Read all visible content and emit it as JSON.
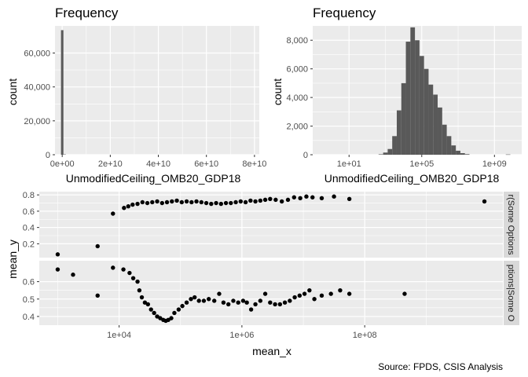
{
  "chart_data": [
    {
      "type": "bar",
      "title": "Frequency",
      "xlabel": "UnmodifiedCeiling_OMB20_GDP18",
      "ylabel": "count",
      "x_scale": "linear",
      "xlim": [
        -3000000000.0,
        82000000000.0
      ],
      "ylim": [
        0,
        76000
      ],
      "x_ticks": [
        0,
        20000000000.0,
        40000000000.0,
        60000000000.0,
        80000000000.0
      ],
      "x_tick_labels": [
        "0e+00",
        "2e+10",
        "4e+10",
        "6e+10",
        "8e+10"
      ],
      "y_ticks": [
        0,
        20000,
        40000,
        60000
      ],
      "y_tick_labels": [
        "0",
        "20,000",
        "40,000",
        "60,000"
      ],
      "bin_width": 1000000000.0,
      "bins": [
        {
          "x": 0,
          "count": 73500
        },
        {
          "x": 1000000000.0,
          "count": 200
        }
      ]
    },
    {
      "type": "bar",
      "title": "Frequency",
      "xlabel": "UnmodifiedCeiling_OMB20_GDP18",
      "ylabel": "count",
      "x_scale": "log10",
      "xlim_log10": [
        -1.0,
        10.5
      ],
      "ylim": [
        0,
        9000
      ],
      "x_ticks_log10": [
        1,
        5,
        9
      ],
      "x_tick_labels": [
        "1e+01",
        "1e+05",
        "1e+09"
      ],
      "y_ticks": [
        0,
        2000,
        4000,
        6000,
        8000
      ],
      "y_tick_labels": [
        "0",
        "2,000",
        "4,000",
        "6,000",
        "8,000"
      ],
      "bin_width_log10": 0.25,
      "bins_log10": [
        {
          "x": 2.75,
          "count": 30
        },
        {
          "x": 3.0,
          "count": 150
        },
        {
          "x": 3.25,
          "count": 400
        },
        {
          "x": 3.5,
          "count": 1300
        },
        {
          "x": 3.75,
          "count": 3100
        },
        {
          "x": 4.0,
          "count": 5000
        },
        {
          "x": 4.25,
          "count": 7900
        },
        {
          "x": 4.5,
          "count": 8900
        },
        {
          "x": 4.75,
          "count": 8000
        },
        {
          "x": 5.0,
          "count": 6900
        },
        {
          "x": 5.25,
          "count": 6000
        },
        {
          "x": 5.5,
          "count": 4900
        },
        {
          "x": 5.75,
          "count": 4200
        },
        {
          "x": 6.0,
          "count": 3300
        },
        {
          "x": 6.25,
          "count": 2100
        },
        {
          "x": 6.5,
          "count": 1300
        },
        {
          "x": 6.75,
          "count": 650
        },
        {
          "x": 7.0,
          "count": 280
        },
        {
          "x": 7.25,
          "count": 110
        },
        {
          "x": 7.5,
          "count": 40
        },
        {
          "x": 9.75,
          "count": 20
        }
      ]
    },
    {
      "type": "scatter",
      "xlabel": "mean_x",
      "ylabel": "mean_y",
      "x_scale": "log10",
      "xlim_log10": [
        2.7,
        10.25
      ],
      "x_ticks_log10": [
        4,
        6,
        8
      ],
      "x_tick_labels": [
        "1e+04",
        "1e+06",
        "1e+08"
      ],
      "facets": [
        {
          "strip": "r(Some Options",
          "ylim": [
            0.03,
            0.84
          ],
          "y_ticks": [
            0.2,
            0.4,
            0.6,
            0.8
          ],
          "y_tick_labels": [
            "0.2",
            "0.4",
            "0.6",
            "0.8"
          ],
          "points": [
            {
              "x": 3.0,
              "y": 0.07
            },
            {
              "x": 3.65,
              "y": 0.17
            },
            {
              "x": 3.9,
              "y": 0.57
            },
            {
              "x": 4.08,
              "y": 0.64
            },
            {
              "x": 4.15,
              "y": 0.66
            },
            {
              "x": 4.22,
              "y": 0.68
            },
            {
              "x": 4.3,
              "y": 0.69
            },
            {
              "x": 4.38,
              "y": 0.71
            },
            {
              "x": 4.46,
              "y": 0.7
            },
            {
              "x": 4.54,
              "y": 0.71
            },
            {
              "x": 4.62,
              "y": 0.72
            },
            {
              "x": 4.7,
              "y": 0.7
            },
            {
              "x": 4.78,
              "y": 0.71
            },
            {
              "x": 4.86,
              "y": 0.72
            },
            {
              "x": 4.94,
              "y": 0.73
            },
            {
              "x": 5.02,
              "y": 0.71
            },
            {
              "x": 5.1,
              "y": 0.72
            },
            {
              "x": 5.18,
              "y": 0.71
            },
            {
              "x": 5.26,
              "y": 0.72
            },
            {
              "x": 5.34,
              "y": 0.71
            },
            {
              "x": 5.42,
              "y": 0.7
            },
            {
              "x": 5.5,
              "y": 0.69
            },
            {
              "x": 5.58,
              "y": 0.7
            },
            {
              "x": 5.66,
              "y": 0.69
            },
            {
              "x": 5.74,
              "y": 0.7
            },
            {
              "x": 5.82,
              "y": 0.7
            },
            {
              "x": 5.9,
              "y": 0.71
            },
            {
              "x": 5.98,
              "y": 0.72
            },
            {
              "x": 6.06,
              "y": 0.71
            },
            {
              "x": 6.14,
              "y": 0.73
            },
            {
              "x": 6.22,
              "y": 0.72
            },
            {
              "x": 6.3,
              "y": 0.73
            },
            {
              "x": 6.38,
              "y": 0.74
            },
            {
              "x": 6.46,
              "y": 0.75
            },
            {
              "x": 6.55,
              "y": 0.74
            },
            {
              "x": 6.65,
              "y": 0.72
            },
            {
              "x": 6.75,
              "y": 0.74
            },
            {
              "x": 6.85,
              "y": 0.77
            },
            {
              "x": 6.95,
              "y": 0.76
            },
            {
              "x": 7.05,
              "y": 0.78
            },
            {
              "x": 7.15,
              "y": 0.77
            },
            {
              "x": 7.3,
              "y": 0.76
            },
            {
              "x": 7.5,
              "y": 0.78
            },
            {
              "x": 7.75,
              "y": 0.75
            },
            {
              "x": 9.95,
              "y": 0.72
            }
          ]
        },
        {
          "strip": "ptions|Some O",
          "ylim": [
            0.35,
            0.72
          ],
          "y_ticks": [
            0.4,
            0.5,
            0.6
          ],
          "y_tick_labels": [
            "0.4",
            "0.5",
            "0.6"
          ],
          "points": [
            {
              "x": 3.0,
              "y": 0.67
            },
            {
              "x": 3.25,
              "y": 0.64
            },
            {
              "x": 3.65,
              "y": 0.52
            },
            {
              "x": 3.9,
              "y": 0.68
            },
            {
              "x": 4.07,
              "y": 0.67
            },
            {
              "x": 4.17,
              "y": 0.65
            },
            {
              "x": 4.23,
              "y": 0.62
            },
            {
              "x": 4.3,
              "y": 0.6
            },
            {
              "x": 4.33,
              "y": 0.55
            },
            {
              "x": 4.37,
              "y": 0.51
            },
            {
              "x": 4.42,
              "y": 0.48
            },
            {
              "x": 4.47,
              "y": 0.47
            },
            {
              "x": 4.52,
              "y": 0.44
            },
            {
              "x": 4.57,
              "y": 0.42
            },
            {
              "x": 4.62,
              "y": 0.4
            },
            {
              "x": 4.67,
              "y": 0.39
            },
            {
              "x": 4.72,
              "y": 0.38
            },
            {
              "x": 4.76,
              "y": 0.375
            },
            {
              "x": 4.8,
              "y": 0.38
            },
            {
              "x": 4.85,
              "y": 0.39
            },
            {
              "x": 4.9,
              "y": 0.42
            },
            {
              "x": 4.97,
              "y": 0.44
            },
            {
              "x": 5.03,
              "y": 0.46
            },
            {
              "x": 5.1,
              "y": 0.48
            },
            {
              "x": 5.17,
              "y": 0.5
            },
            {
              "x": 5.23,
              "y": 0.51
            },
            {
              "x": 5.3,
              "y": 0.49
            },
            {
              "x": 5.38,
              "y": 0.49
            },
            {
              "x": 5.46,
              "y": 0.5
            },
            {
              "x": 5.55,
              "y": 0.49
            },
            {
              "x": 5.63,
              "y": 0.53
            },
            {
              "x": 5.7,
              "y": 0.48
            },
            {
              "x": 5.78,
              "y": 0.47
            },
            {
              "x": 5.86,
              "y": 0.49
            },
            {
              "x": 5.94,
              "y": 0.48
            },
            {
              "x": 6.02,
              "y": 0.49
            },
            {
              "x": 6.08,
              "y": 0.48
            },
            {
              "x": 6.15,
              "y": 0.44
            },
            {
              "x": 6.22,
              "y": 0.47
            },
            {
              "x": 6.3,
              "y": 0.49
            },
            {
              "x": 6.38,
              "y": 0.53
            },
            {
              "x": 6.46,
              "y": 0.48
            },
            {
              "x": 6.54,
              "y": 0.47
            },
            {
              "x": 6.62,
              "y": 0.47
            },
            {
              "x": 6.7,
              "y": 0.48
            },
            {
              "x": 6.78,
              "y": 0.49
            },
            {
              "x": 6.86,
              "y": 0.51
            },
            {
              "x": 6.94,
              "y": 0.52
            },
            {
              "x": 7.02,
              "y": 0.53
            },
            {
              "x": 7.1,
              "y": 0.55
            },
            {
              "x": 7.18,
              "y": 0.5
            },
            {
              "x": 7.3,
              "y": 0.52
            },
            {
              "x": 7.45,
              "y": 0.53
            },
            {
              "x": 7.6,
              "y": 0.55
            },
            {
              "x": 7.75,
              "y": 0.53
            },
            {
              "x": 8.65,
              "y": 0.53
            }
          ]
        }
      ]
    }
  ],
  "caption": "Source: FPDS, CSIS Analysis",
  "colors": {
    "panel_bg": "#EBEBEB",
    "grid": "#FFFFFF",
    "bar": "#595959",
    "point": "#000000",
    "strip_bg": "#D9D9D9",
    "axis_text": "#4D4D4D",
    "title_text": "#000000"
  }
}
